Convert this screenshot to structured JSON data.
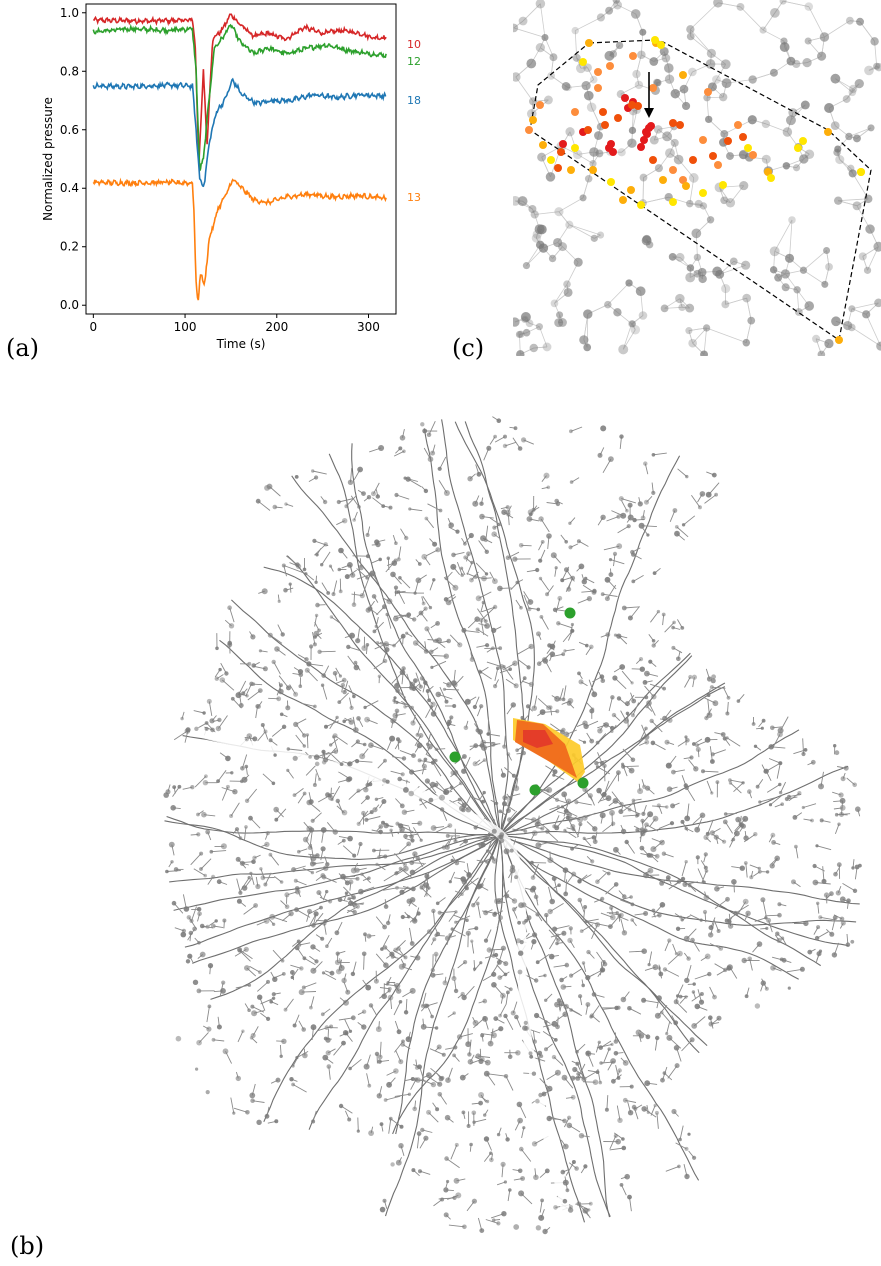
{
  "panel_labels": {
    "a": "(a)",
    "b": "(b)",
    "c": "(c)"
  },
  "chart_data": {
    "type": "line",
    "xlabel": "Time (s)",
    "ylabel": "Normalized pressure",
    "xlim": [
      -8,
      330
    ],
    "ylim": [
      -0.03,
      1.03
    ],
    "xticks": [
      0,
      100,
      200,
      300
    ],
    "yticks": [
      0.0,
      0.2,
      0.4,
      0.6,
      0.8,
      1.0
    ],
    "grid": false,
    "series": [
      {
        "name": "10",
        "color": "#d62728",
        "keypoints": [
          [
            0,
            0.975
          ],
          [
            60,
            0.972
          ],
          [
            108,
            0.975
          ],
          [
            111,
            0.9
          ],
          [
            115,
            0.48
          ],
          [
            120,
            0.8
          ],
          [
            124,
            0.55
          ],
          [
            130,
            0.91
          ],
          [
            140,
            0.94
          ],
          [
            150,
            0.995
          ],
          [
            160,
            0.96
          ],
          [
            175,
            0.92
          ],
          [
            190,
            0.93
          ],
          [
            210,
            0.91
          ],
          [
            230,
            0.95
          ],
          [
            250,
            0.93
          ],
          [
            270,
            0.94
          ],
          [
            290,
            0.93
          ],
          [
            305,
            0.915
          ],
          [
            320,
            0.915
          ]
        ]
      },
      {
        "name": "12",
        "color": "#2ca02c",
        "keypoints": [
          [
            0,
            0.935
          ],
          [
            40,
            0.945
          ],
          [
            80,
            0.94
          ],
          [
            108,
            0.945
          ],
          [
            112,
            0.8
          ],
          [
            116,
            0.46
          ],
          [
            120,
            0.5
          ],
          [
            126,
            0.7
          ],
          [
            132,
            0.88
          ],
          [
            140,
            0.91
          ],
          [
            150,
            0.96
          ],
          [
            160,
            0.9
          ],
          [
            175,
            0.86
          ],
          [
            190,
            0.88
          ],
          [
            210,
            0.86
          ],
          [
            235,
            0.88
          ],
          [
            255,
            0.89
          ],
          [
            280,
            0.87
          ],
          [
            300,
            0.86
          ],
          [
            320,
            0.855
          ]
        ]
      },
      {
        "name": "18",
        "color": "#1f77b4",
        "keypoints": [
          [
            0,
            0.75
          ],
          [
            40,
            0.748
          ],
          [
            80,
            0.752
          ],
          [
            108,
            0.75
          ],
          [
            112,
            0.6
          ],
          [
            116,
            0.43
          ],
          [
            121,
            0.41
          ],
          [
            126,
            0.55
          ],
          [
            134,
            0.66
          ],
          [
            143,
            0.7
          ],
          [
            152,
            0.77
          ],
          [
            162,
            0.72
          ],
          [
            178,
            0.69
          ],
          [
            195,
            0.7
          ],
          [
            215,
            0.7
          ],
          [
            240,
            0.72
          ],
          [
            265,
            0.71
          ],
          [
            290,
            0.72
          ],
          [
            320,
            0.715
          ]
        ]
      },
      {
        "name": "13",
        "color": "#ff7f0e",
        "keypoints": [
          [
            0,
            0.42
          ],
          [
            40,
            0.418
          ],
          [
            80,
            0.42
          ],
          [
            108,
            0.418
          ],
          [
            110,
            0.3
          ],
          [
            112,
            0.08
          ],
          [
            114,
            0.0
          ],
          [
            117,
            0.12
          ],
          [
            121,
            0.06
          ],
          [
            126,
            0.22
          ],
          [
            136,
            0.33
          ],
          [
            145,
            0.38
          ],
          [
            152,
            0.43
          ],
          [
            162,
            0.4
          ],
          [
            175,
            0.36
          ],
          [
            190,
            0.35
          ],
          [
            210,
            0.37
          ],
          [
            235,
            0.38
          ],
          [
            260,
            0.37
          ],
          [
            290,
            0.375
          ],
          [
            320,
            0.365
          ]
        ]
      }
    ]
  },
  "panel_c": {
    "title": "",
    "colors": {
      "hull": "#000000",
      "red": "#e31a1c",
      "orange_red": "#f0500a",
      "orange": "#fd8d3c",
      "amber": "#fdae0a",
      "yellow": "#ffe600",
      "network": "#888888"
    }
  },
  "panel_b": {
    "colors": {
      "network": "#7a7a7a",
      "sensor": "#2ca02c",
      "region_outer": "#fdcb2a",
      "region_inner": "#f06a1c",
      "region_core": "#e2372a"
    }
  }
}
